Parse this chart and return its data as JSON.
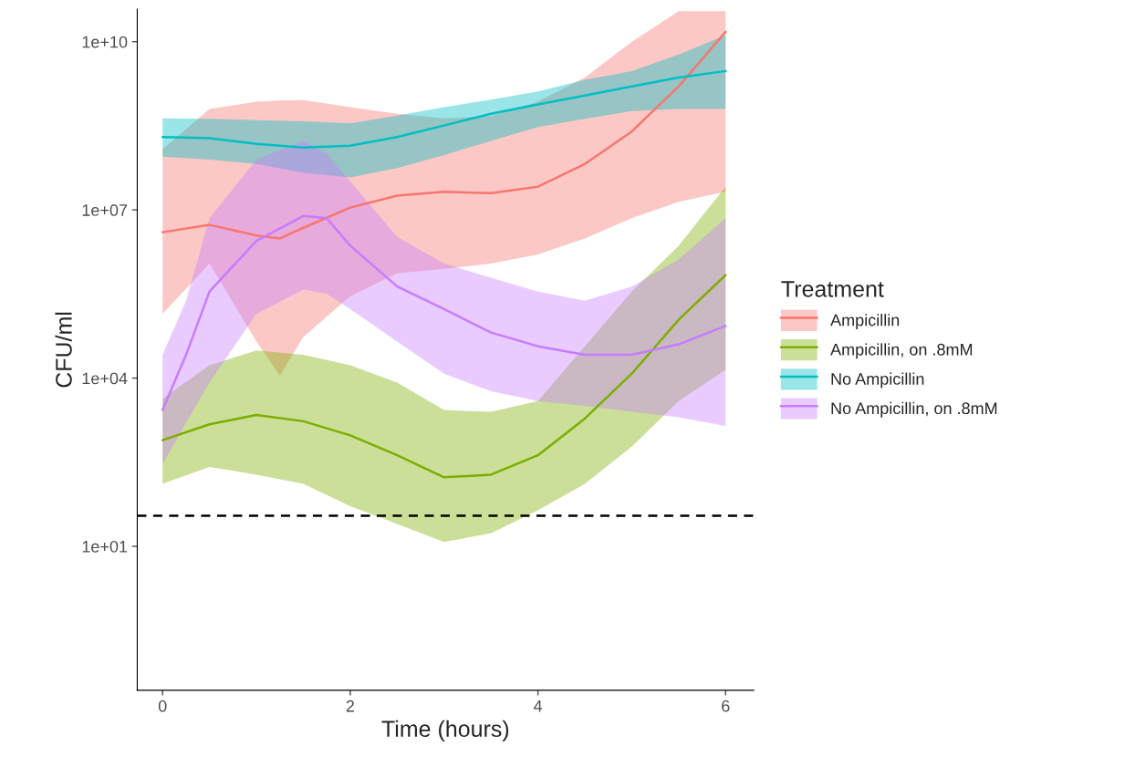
{
  "chart_data": {
    "type": "line",
    "xlabel": "Time (hours)",
    "ylabel": "CFU/ml",
    "legend_title": "Treatment",
    "legend": "right",
    "grid": false,
    "log": "y",
    "xlim": [
      -0.27,
      6.3
    ],
    "xticks": [
      0,
      2,
      4,
      6
    ],
    "ylim": [
      0.027,
      38000000000.0
    ],
    "yticks": [
      {
        "value": 10,
        "label": "1e+01"
      },
      {
        "value": 10000,
        "label": "1e+04"
      },
      {
        "value": 10000000,
        "label": "1e+07"
      },
      {
        "value": 10000000000,
        "label": "1e+10"
      }
    ],
    "ref_lines": [
      {
        "axis": "y",
        "value": 35,
        "color": "#000000",
        "line_style": "dashed"
      }
    ],
    "series": [
      {
        "name": "Ampicillin",
        "color": "#f8766d",
        "x": [
          0,
          0.5,
          1,
          1.25,
          1.5,
          2,
          2.5,
          3,
          3.5,
          4,
          4.5,
          5,
          5.5,
          6
        ],
        "values": [
          4000000.0,
          5400000.0,
          3500000.0,
          3100000.0,
          4800000.0,
          11000000.0,
          18000000.0,
          21000000.0,
          20000000.0,
          26000000.0,
          66000000.0,
          250000000.0,
          1600000000.0,
          15000000000.0
        ],
        "upper": [
          120000000.0,
          630000000.0,
          850000000.0,
          890000000.0,
          910000000.0,
          680000000.0,
          520000000.0,
          430000000.0,
          470000000.0,
          850000000.0,
          2300000000.0,
          10000000000.0,
          35000000000.0,
          35000000000.0
        ],
        "lower": [
          140000.0,
          1100000.0,
          45000.0,
          11000.0,
          54000.0,
          290000.0,
          740000.0,
          890000.0,
          1100000.0,
          1600000.0,
          3100000.0,
          7100000.0,
          14000000.0,
          21000000.0
        ]
      },
      {
        "name": "Ampicillin, on .8mM",
        "color": "#7cae00",
        "x": [
          0,
          0.5,
          1,
          1.5,
          2,
          2.5,
          3,
          3.5,
          4,
          4.5,
          5,
          5.5,
          6
        ],
        "values": [
          780,
          1500,
          2200,
          1700,
          950,
          420,
          170,
          190,
          420,
          1900,
          12000.0,
          110000.0,
          690000.0
        ],
        "upper": [
          4300,
          17000.0,
          31000.0,
          26000.0,
          17000.0,
          8300,
          2700,
          2500,
          3900,
          37000.0,
          350000.0,
          2300000.0,
          26000000.0
        ],
        "lower": [
          130,
          260,
          190,
          130,
          52,
          25,
          12,
          17,
          44,
          130,
          600,
          3900,
          14000.0
        ]
      },
      {
        "name": "No Ampicillin",
        "color": "#00bfc4",
        "x": [
          0,
          0.5,
          1,
          1.5,
          2,
          2.5,
          3,
          3.5,
          4,
          4.5,
          5,
          5.5,
          6
        ],
        "values": [
          200000000.0,
          190000000.0,
          150000000.0,
          130000000.0,
          140000000.0,
          200000000.0,
          320000000.0,
          520000000.0,
          760000000.0,
          1100000000.0,
          1600000000.0,
          2300000000.0,
          3000000000.0
        ],
        "upper": [
          430000000.0,
          420000000.0,
          400000000.0,
          380000000.0,
          350000000.0,
          480000000.0,
          680000000.0,
          930000000.0,
          1300000000.0,
          2100000000.0,
          3000000000.0,
          5900000000.0,
          13000000000.0
        ],
        "lower": [
          89000000.0,
          79000000.0,
          66000000.0,
          46000000.0,
          38000000.0,
          56000000.0,
          95000000.0,
          170000000.0,
          300000000.0,
          420000000.0,
          580000000.0,
          630000000.0,
          630000000.0
        ]
      },
      {
        "name": "No Ampicillin, on .8mM",
        "color": "#c77cff",
        "x": [
          0,
          0.25,
          0.5,
          1,
          1.5,
          1.75,
          2,
          2.5,
          3,
          3.5,
          4,
          4.5,
          5,
          5.5,
          6
        ],
        "values": [
          2700,
          26000.0,
          350000.0,
          2800000.0,
          7800000.0,
          7100000.0,
          2300000.0,
          430000.0,
          170000.0,
          65000.0,
          37000.0,
          26000.0,
          26000.0,
          40000.0,
          85000.0
        ],
        "upper": [
          26000.0,
          240000.0,
          7100000.0,
          79000000.0,
          170000000.0,
          100000000.0,
          32000000.0,
          3300000.0,
          1100000.0,
          620000.0,
          350000.0,
          240000.0,
          430000.0,
          1300000.0,
          7100000.0
        ],
        "lower": [
          290,
          1600,
          8300,
          140000.0,
          380000.0,
          320000.0,
          170000.0,
          45000.0,
          12000.0,
          5800,
          3900,
          3200,
          2500,
          2000,
          1400
        ]
      }
    ]
  }
}
